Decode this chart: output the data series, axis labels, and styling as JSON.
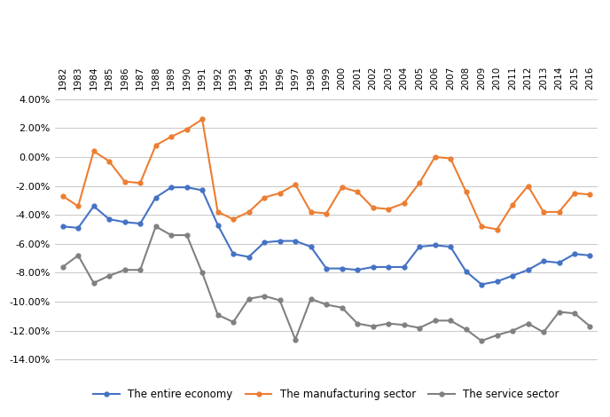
{
  "years": [
    1982,
    1983,
    1984,
    1985,
    1986,
    1987,
    1988,
    1989,
    1990,
    1991,
    1992,
    1993,
    1994,
    1995,
    1996,
    1997,
    1998,
    1999,
    2000,
    2001,
    2002,
    2003,
    2004,
    2005,
    2006,
    2007,
    2008,
    2009,
    2010,
    2011,
    2012,
    2013,
    2014,
    2015,
    2016
  ],
  "entire_economy": [
    -0.048,
    -0.049,
    -0.034,
    -0.043,
    -0.045,
    -0.046,
    -0.028,
    -0.021,
    -0.021,
    -0.023,
    -0.047,
    -0.067,
    -0.069,
    -0.059,
    -0.058,
    -0.058,
    -0.062,
    -0.077,
    -0.077,
    -0.078,
    -0.076,
    -0.076,
    -0.076,
    -0.062,
    -0.061,
    -0.062,
    -0.079,
    -0.088,
    -0.086,
    -0.082,
    -0.078,
    -0.072,
    -0.073,
    -0.067,
    -0.068
  ],
  "manufacturing": [
    -0.027,
    -0.034,
    0.004,
    -0.003,
    -0.017,
    -0.018,
    0.008,
    0.014,
    0.019,
    0.026,
    -0.038,
    -0.043,
    -0.038,
    -0.028,
    -0.025,
    -0.019,
    -0.038,
    -0.039,
    -0.021,
    -0.024,
    -0.035,
    -0.036,
    -0.032,
    -0.018,
    0.0,
    -0.001,
    -0.024,
    -0.048,
    -0.05,
    -0.033,
    -0.02,
    -0.038,
    -0.038,
    -0.025,
    -0.026
  ],
  "service_sector": [
    -0.076,
    -0.068,
    -0.087,
    -0.082,
    -0.078,
    -0.078,
    -0.048,
    -0.054,
    -0.054,
    -0.08,
    -0.109,
    -0.114,
    -0.098,
    -0.096,
    -0.099,
    -0.126,
    -0.098,
    -0.102,
    -0.104,
    -0.115,
    -0.117,
    -0.115,
    -0.116,
    -0.118,
    -0.113,
    -0.113,
    -0.119,
    -0.127,
    -0.123,
    -0.12,
    -0.115,
    -0.121,
    -0.107,
    -0.108,
    -0.117
  ],
  "line_color_economy": "#4472C4",
  "line_color_manufacturing": "#ED7D31",
  "line_color_service": "#808080",
  "marker_style": "o",
  "marker_size": 3.5,
  "line_width": 1.5,
  "ylim": [
    -0.145,
    0.045
  ],
  "yticks": [
    0.04,
    0.02,
    0.0,
    -0.02,
    -0.04,
    -0.06,
    -0.08,
    -0.1,
    -0.12,
    -0.14
  ],
  "legend_labels": [
    "The entire economy",
    "The manufacturing sector",
    "The service sector"
  ],
  "background_color": "#ffffff",
  "grid_color": "#c8c8c8"
}
